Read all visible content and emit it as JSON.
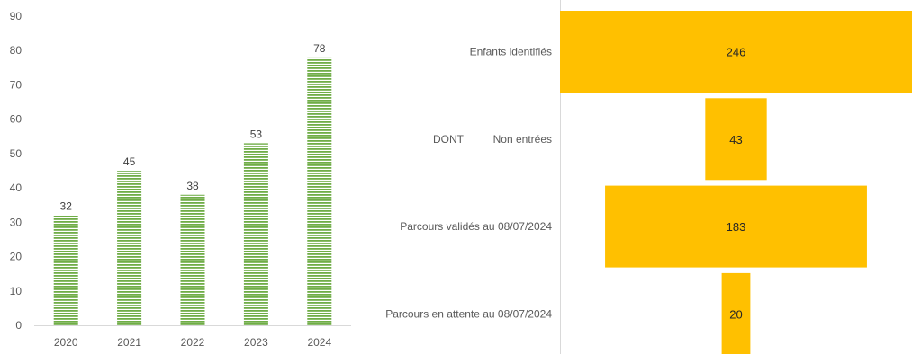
{
  "chart_data": [
    {
      "type": "bar",
      "categories": [
        "2020",
        "2021",
        "2022",
        "2023",
        "2024"
      ],
      "values": [
        32,
        45,
        38,
        53,
        78
      ],
      "title": "",
      "xlabel": "",
      "ylabel": "",
      "ylim": [
        0,
        90
      ],
      "yticks": [
        0,
        10,
        20,
        30,
        40,
        50,
        60,
        70,
        80,
        90
      ],
      "bar_color": "#70ad47",
      "bar_pattern": "horizontal-stripes",
      "data_labels": true,
      "grid": false,
      "legend": "none"
    },
    {
      "type": "funnel",
      "categories": [
        "Enfants identifiés",
        "Non entrées",
        "Parcours validés au 08/07/2024",
        "Parcours en attente au 08/07/2024"
      ],
      "group_labels": [
        "",
        "DONT",
        "",
        ""
      ],
      "values": [
        246,
        43,
        183,
        20
      ],
      "bar_color": "#ffc000",
      "data_labels": true,
      "legend": "none"
    }
  ]
}
